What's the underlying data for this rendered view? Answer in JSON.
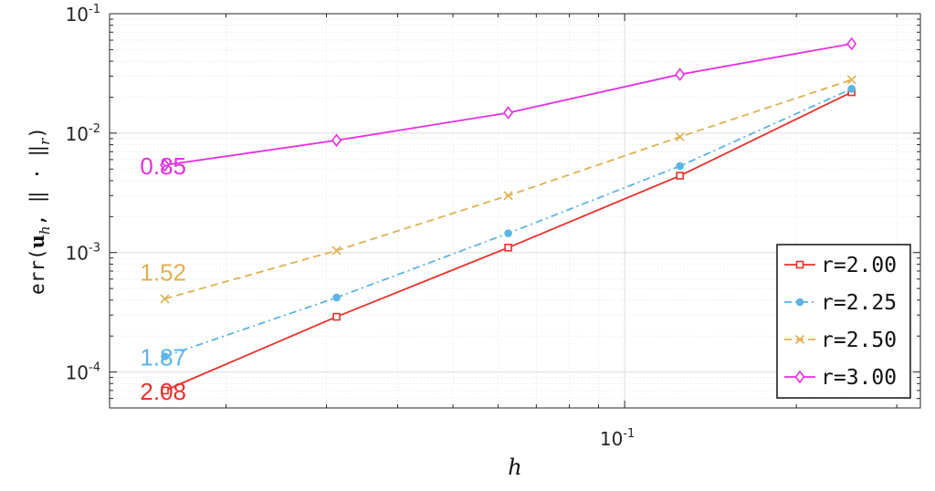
{
  "chart_data": {
    "type": "line",
    "x_scale": "log",
    "y_scale": "log",
    "xlabel": "h",
    "ylabel_parts": {
      "prefix": "err(",
      "u": "u",
      "u_sub": "h",
      "middle": ", ‖ · ‖",
      "norm_sub": "r",
      "suffix": ")"
    },
    "xlim": [
      0.0125,
      0.33
    ],
    "ylim": [
      5e-05,
      0.1
    ],
    "x": [
      0.015625,
      0.03125,
      0.0625,
      0.125,
      0.25
    ],
    "x_ticks": [
      {
        "value": 0.1,
        "base": "10",
        "exp": "-1"
      }
    ],
    "y_ticks": [
      {
        "value": 0.0001,
        "base": "10",
        "exp": "-4"
      },
      {
        "value": 0.001,
        "base": "10",
        "exp": "-3"
      },
      {
        "value": 0.01,
        "base": "10",
        "exp": "-2"
      },
      {
        "value": 0.1,
        "base": "10",
        "exp": "-1"
      }
    ],
    "grid": true,
    "minor_grid": true,
    "legend_position": "bottom-right",
    "series": [
      {
        "name": "r=2.00",
        "color": "#e8312a",
        "marker": "square",
        "dash": "solid",
        "values": [
          7e-05,
          0.00029,
          0.0011,
          0.0044,
          0.022
        ],
        "rate": "2.08"
      },
      {
        "name": "r=2.25",
        "color": "#5bb4e5",
        "marker": "dot",
        "dash": "dashdot",
        "values": [
          0.000135,
          0.00042,
          0.00145,
          0.0053,
          0.0235
        ],
        "rate": "1.87"
      },
      {
        "name": "r=2.50",
        "color": "#e0b050",
        "marker": "x",
        "dash": "dashed",
        "values": [
          0.00041,
          0.00104,
          0.003,
          0.0093,
          0.028
        ],
        "rate": "1.52"
      },
      {
        "name": "r=3.00",
        "color": "#e52fe5",
        "marker": "diamond",
        "dash": "solid",
        "values": [
          0.0054,
          0.0087,
          0.0148,
          0.031,
          0.056
        ],
        "rate": "0.85"
      }
    ]
  }
}
